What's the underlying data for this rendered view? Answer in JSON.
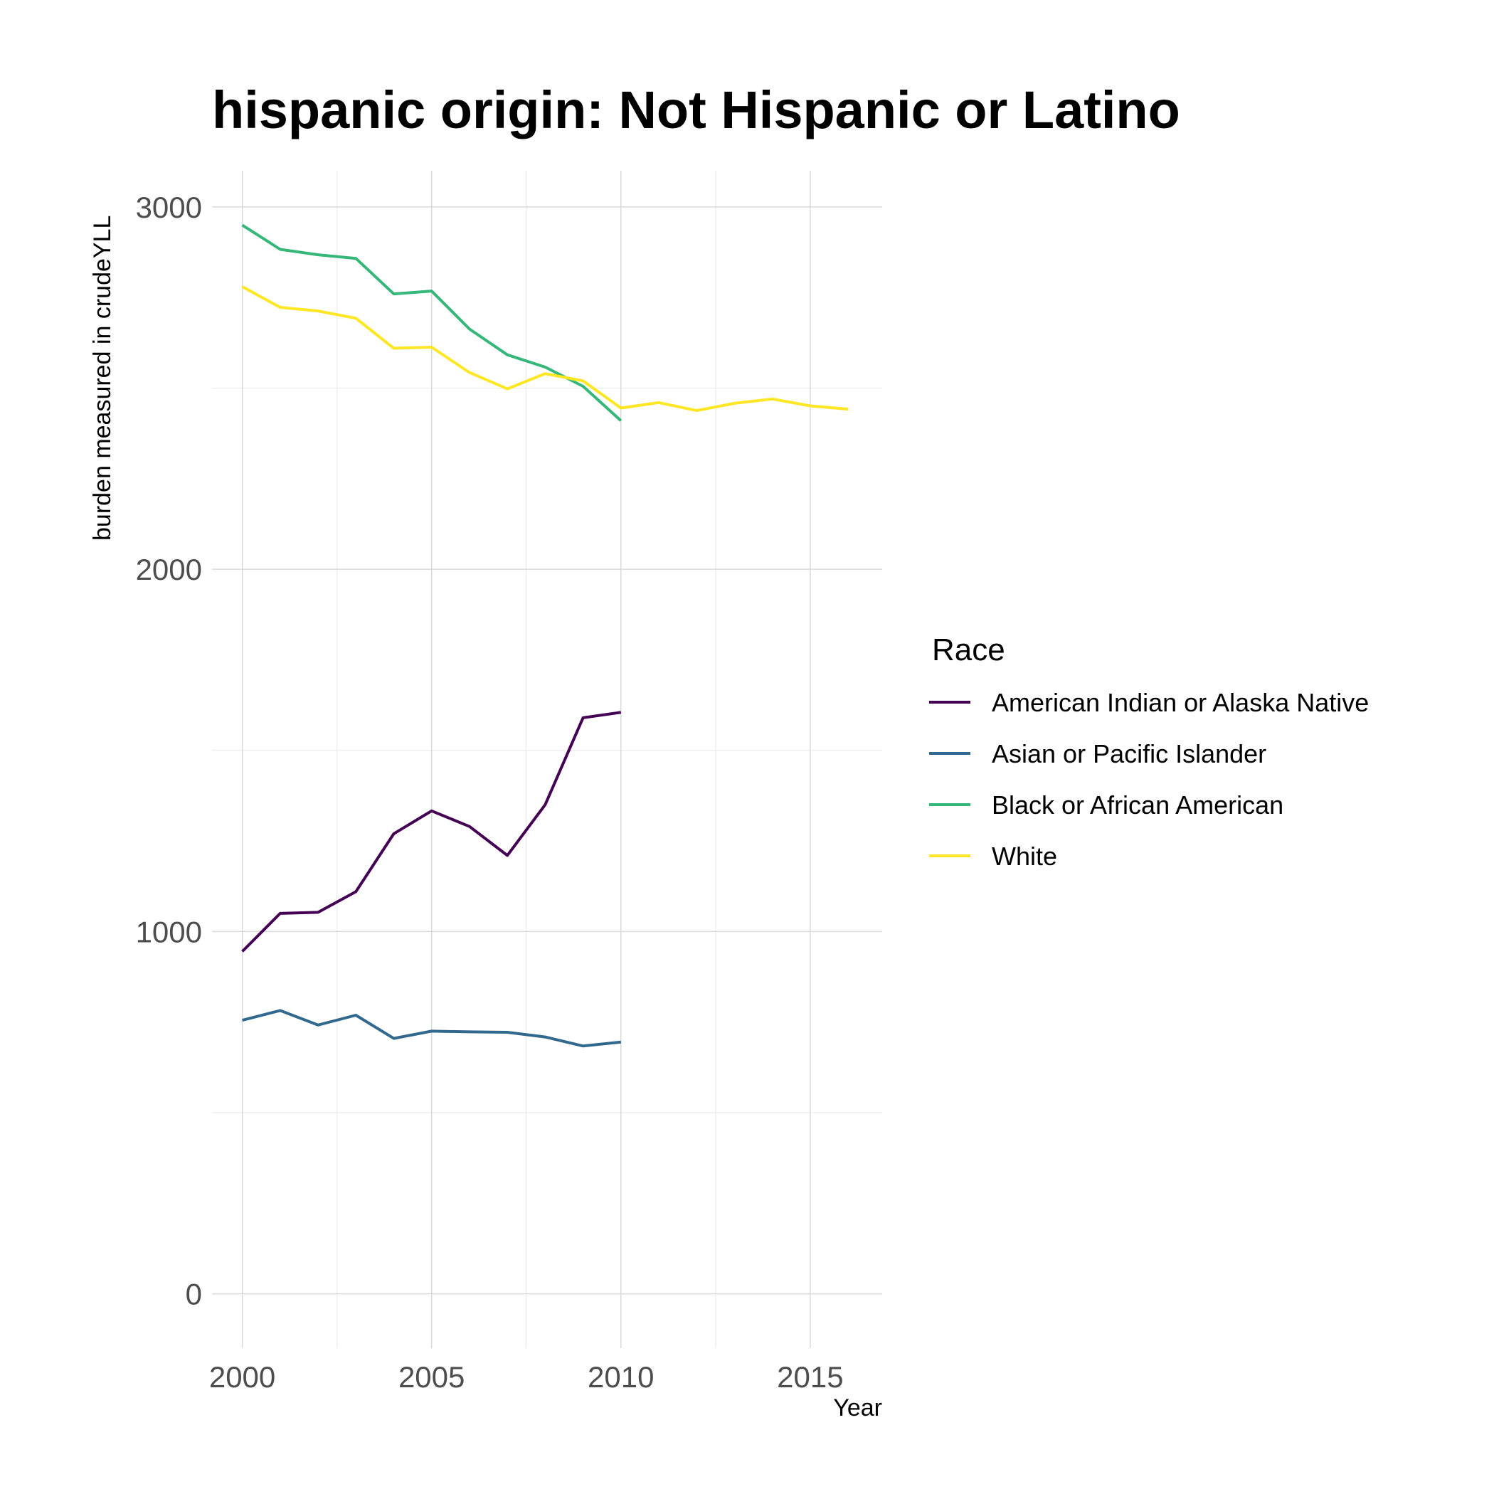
{
  "chart_data": {
    "type": "line",
    "title": "hispanic origin: Not Hispanic or Latino",
    "xlabel": "Year",
    "ylabel": "burden measured in crudeYLL",
    "xlim": [
      1999.2,
      2016.9
    ],
    "ylim": [
      -150,
      3100
    ],
    "x_ticks": [
      2000,
      2005,
      2010,
      2015
    ],
    "y_ticks": [
      0,
      1000,
      2000,
      3000
    ],
    "grid": true,
    "legend": {
      "title": "Race",
      "position": "right"
    },
    "series": [
      {
        "name": "American Indian or Alaska Native",
        "color": "#440154",
        "x": [
          2000,
          2001,
          2002,
          2003,
          2004,
          2005,
          2006,
          2007,
          2008,
          2009,
          2010
        ],
        "values": [
          945,
          1050,
          1053,
          1110,
          1270,
          1333,
          1290,
          1210,
          1350,
          1590,
          1605
        ]
      },
      {
        "name": "Asian or Pacific Islander",
        "color": "#31688E",
        "x": [
          2000,
          2001,
          2002,
          2003,
          2004,
          2005,
          2006,
          2007,
          2008,
          2009,
          2010
        ],
        "values": [
          755,
          782,
          742,
          769,
          705,
          725,
          723,
          722,
          709,
          684,
          695
        ]
      },
      {
        "name": "Black or African American",
        "color": "#35B779",
        "x": [
          2000,
          2001,
          2002,
          2003,
          2004,
          2005,
          2006,
          2007,
          2008,
          2009,
          2010
        ],
        "values": [
          2950,
          2883,
          2868,
          2858,
          2760,
          2768,
          2663,
          2592,
          2558,
          2505,
          2410
        ]
      },
      {
        "name": "White",
        "color": "#FDE725",
        "x": [
          2000,
          2001,
          2002,
          2003,
          2004,
          2005,
          2006,
          2007,
          2008,
          2009,
          2010,
          2011,
          2012,
          2013,
          2014,
          2015,
          2016
        ],
        "values": [
          2780,
          2723,
          2713,
          2693,
          2610,
          2613,
          2543,
          2498,
          2540,
          2520,
          2445,
          2460,
          2438,
          2458,
          2470,
          2451,
          2442
        ]
      }
    ]
  }
}
